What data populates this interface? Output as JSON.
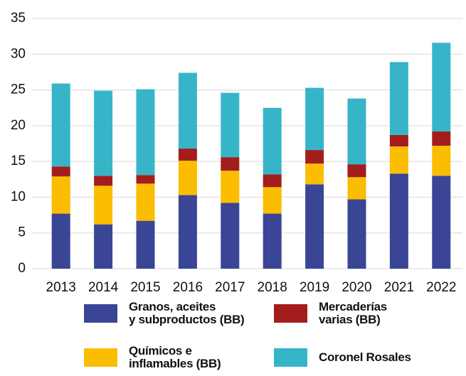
{
  "chart_data": {
    "type": "stacked_bar",
    "categories": [
      "2013",
      "2014",
      "2015",
      "2016",
      "2017",
      "2018",
      "2019",
      "2020",
      "2021",
      "2022"
    ],
    "series": [
      {
        "name": "Granos, aceites\ny subproductos (BB)",
        "color": "#3a4596",
        "values": [
          7.7,
          6.2,
          6.7,
          10.3,
          9.2,
          7.7,
          11.8,
          9.7,
          13.3,
          13.0
        ]
      },
      {
        "name": "Químicos e\ninflamables (BB)",
        "color": "#fbbd00",
        "values": [
          5.2,
          5.4,
          5.2,
          4.8,
          4.5,
          3.7,
          2.9,
          3.1,
          3.8,
          4.2
        ]
      },
      {
        "name": "Mercaderías\nvarias (BB)",
        "color": "#a31d1d",
        "values": [
          1.4,
          1.4,
          1.2,
          1.7,
          1.9,
          1.8,
          1.9,
          1.8,
          1.6,
          2.0
        ]
      },
      {
        "name": "Coronel Rosales",
        "color": "#36b5c9",
        "values": [
          11.6,
          11.9,
          12.0,
          10.6,
          9.0,
          9.3,
          8.7,
          9.2,
          10.2,
          12.4
        ]
      }
    ],
    "ylim": [
      0,
      35
    ],
    "yticks": [
      0,
      5,
      10,
      15,
      20,
      25,
      30,
      35
    ],
    "grid": true
  }
}
